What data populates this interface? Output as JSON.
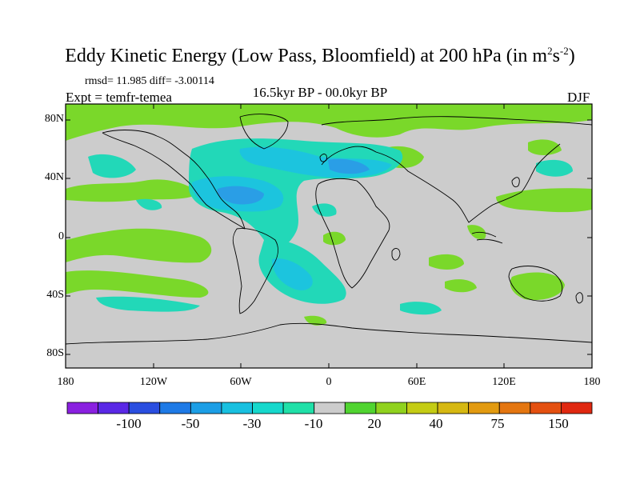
{
  "title": {
    "main": "Eddy Kinetic Energy (Low Pass, Bloomfield) at 200 hPa (in m",
    "sup1": "2",
    "mid": "s",
    "sup2": "-2",
    "end": ")"
  },
  "stats": "rmsd= 11.985 diff= -3.00114",
  "experiment": "Expt = temfr-temea",
  "period": "16.5kyr BP - 00.0kyr BP",
  "season": "DJF",
  "lat_labels": [
    "80N",
    "40N",
    "0",
    "40S",
    "80S"
  ],
  "lon_labels": [
    "180",
    "120W",
    "60W",
    "0",
    "60E",
    "120E",
    "180"
  ],
  "colorbar": {
    "colors": [
      "#8a20e0",
      "#5a28e6",
      "#2a4ee0",
      "#1e7ae6",
      "#1c9ee6",
      "#18c0e0",
      "#16d8cc",
      "#20e0a8",
      "#cccccc",
      "#50d430",
      "#90d21e",
      "#c4cc14",
      "#d6b812",
      "#e29a10",
      "#e47610",
      "#e45010",
      "#e02810"
    ],
    "labels": [
      "-100",
      "-50",
      "-30",
      "-10",
      "20",
      "40",
      "75",
      "150"
    ]
  },
  "palette": {
    "land_bg": "#cccccc",
    "pos_light": "#7ad82a",
    "neg_light": "#22d8b8",
    "neg_mid": "#1cc4de",
    "neg_strong": "#2a9ee6"
  }
}
